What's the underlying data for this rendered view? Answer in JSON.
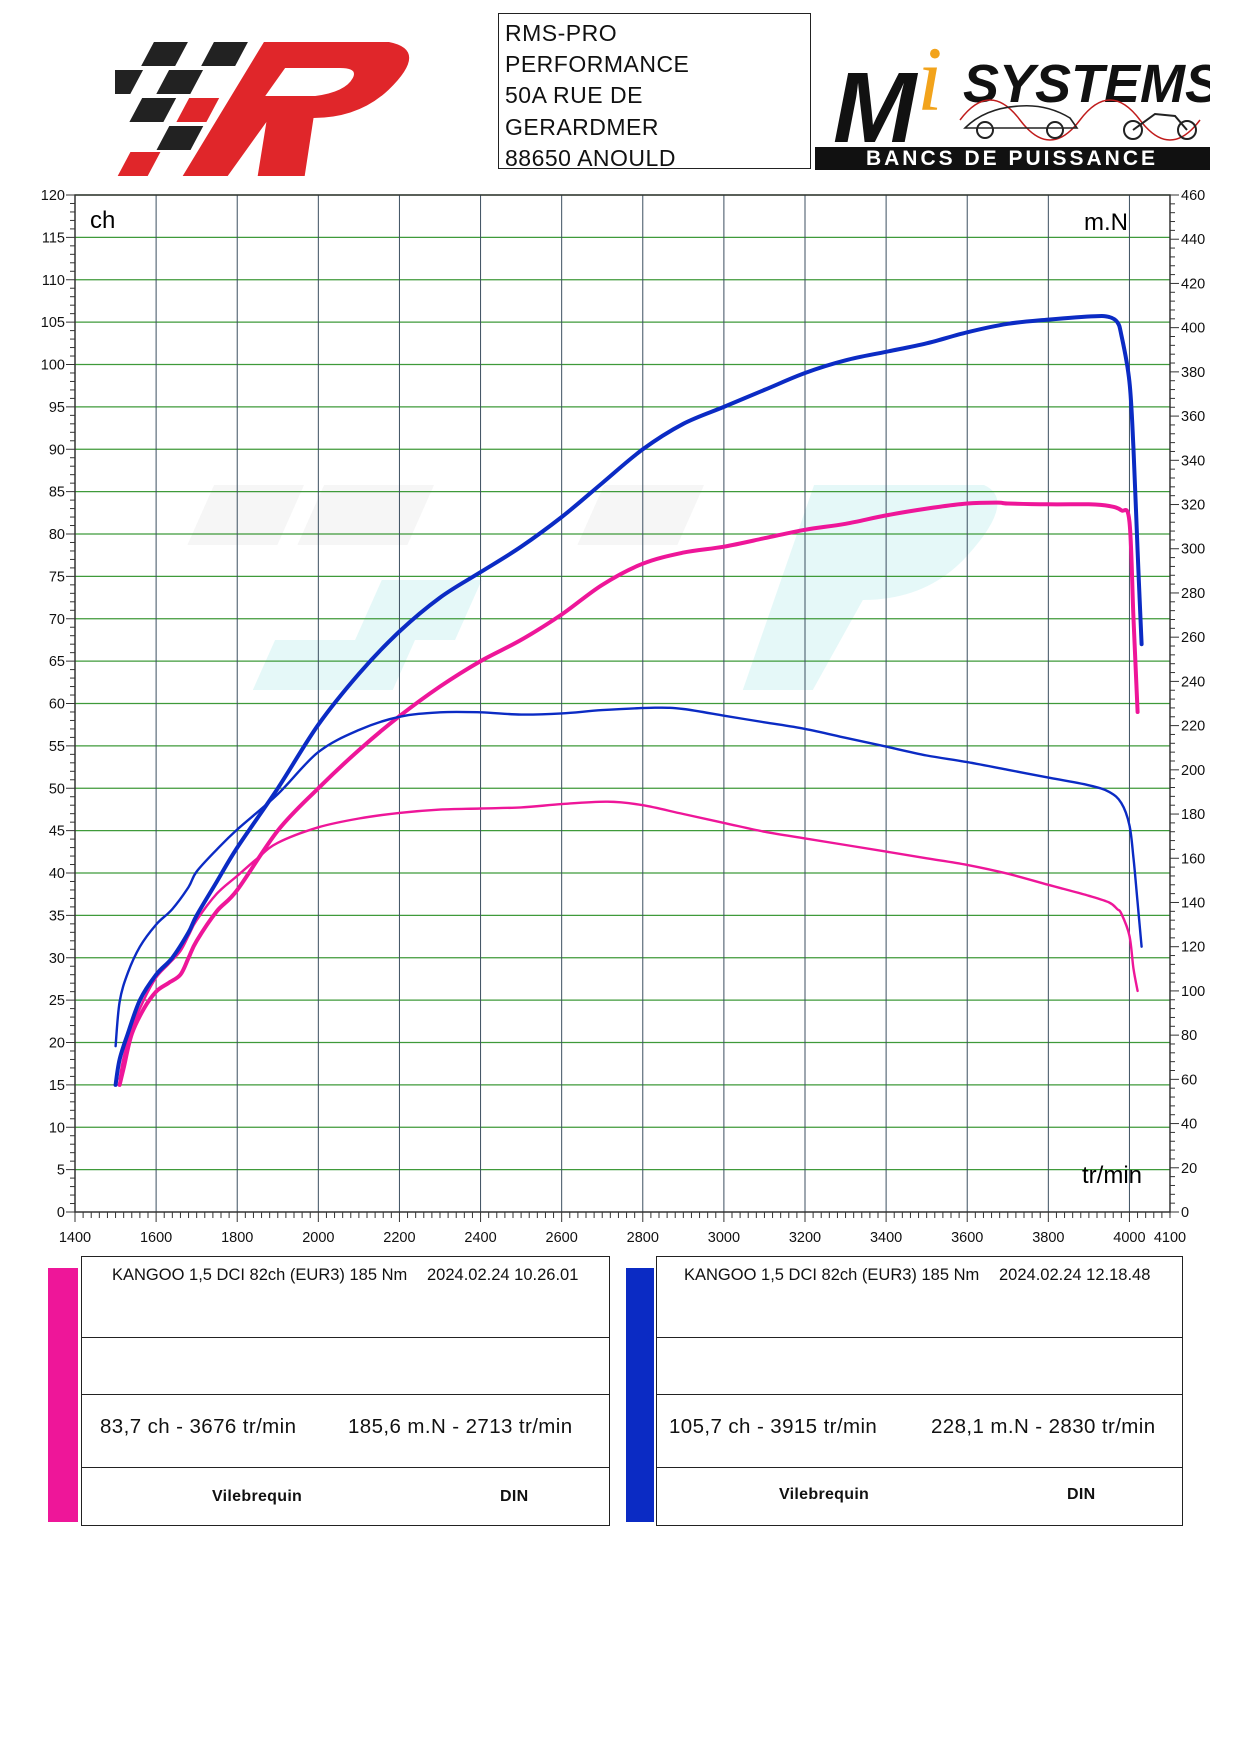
{
  "header": {
    "address_lines": [
      "RMS-PRO",
      "PERFORMANCE",
      "50A RUE DE",
      "GERARDMER",
      "88650 ANOULD"
    ],
    "logo_right_text": "SYSTEMS",
    "logo_right_subtitle": "BANCS DE PUISSANCE",
    "logo_right_letter": "M",
    "logo_right_i": "i"
  },
  "colors": {
    "run1": "#ee1699",
    "run2": "#0b2bc4",
    "grid_v": "#3c4f60",
    "grid_h": "#3f9a3a",
    "logo_red": "#e0262a"
  },
  "chart_data": {
    "type": "line",
    "left_unit": "ch",
    "right_unit": "m.N",
    "x_unit": "tr/min",
    "xlim": [
      1400,
      4100
    ],
    "ylim_left": [
      0,
      120
    ],
    "ylim_right": [
      0,
      460
    ],
    "x_ticks": [
      1400,
      1600,
      1800,
      2000,
      2200,
      2400,
      2600,
      2800,
      3000,
      3200,
      3400,
      3600,
      3800,
      4000,
      4100
    ],
    "y_left_ticks": [
      0,
      5,
      10,
      15,
      20,
      25,
      30,
      35,
      40,
      45,
      50,
      55,
      60,
      65,
      70,
      75,
      80,
      85,
      90,
      95,
      100,
      105,
      110,
      115,
      120
    ],
    "y_right_ticks": [
      0,
      20,
      40,
      60,
      80,
      100,
      120,
      140,
      160,
      180,
      200,
      220,
      240,
      260,
      280,
      300,
      320,
      340,
      360,
      380,
      400,
      420,
      440,
      460
    ],
    "series": [
      {
        "run": "run1",
        "kind": "power",
        "axis": "left",
        "x": [
          1510,
          1520,
          1540,
          1570,
          1600,
          1630,
          1660,
          1680,
          1700,
          1750,
          1800,
          1900,
          2000,
          2100,
          2200,
          2300,
          2400,
          2500,
          2600,
          2700,
          2800,
          2900,
          3000,
          3100,
          3200,
          3300,
          3400,
          3500,
          3600,
          3676,
          3700,
          3800,
          3900,
          3950,
          3980,
          4000,
          4010,
          4020
        ],
        "y": [
          15,
          17,
          21,
          24,
          26,
          27,
          28,
          30,
          32,
          35.5,
          38,
          45,
          50,
          54.5,
          58.5,
          62,
          65,
          67.5,
          70.5,
          74,
          76.5,
          77.8,
          78.5,
          79.5,
          80.5,
          81.2,
          82.2,
          83,
          83.6,
          83.7,
          83.6,
          83.5,
          83.5,
          83.3,
          82.8,
          81.5,
          70,
          59
        ]
      },
      {
        "run": "run1",
        "kind": "torque",
        "axis": "right",
        "x": [
          1510,
          1520,
          1540,
          1570,
          1600,
          1630,
          1660,
          1680,
          1700,
          1750,
          1800,
          1850,
          1900,
          2000,
          2100,
          2200,
          2300,
          2400,
          2500,
          2600,
          2713,
          2800,
          2900,
          3000,
          3100,
          3200,
          3300,
          3400,
          3500,
          3600,
          3700,
          3800,
          3900,
          3950,
          3970,
          3980,
          4000,
          4010,
          4020
        ],
        "y": [
          60,
          70,
          83,
          96,
          106,
          112,
          118,
          125,
          132,
          144,
          152,
          160,
          167,
          174,
          178,
          180.5,
          182,
          182.5,
          183,
          184.5,
          185.6,
          184,
          180,
          176,
          172,
          169,
          166,
          163,
          160,
          157,
          153,
          148,
          143,
          140,
          137,
          135,
          125,
          110,
          100
        ]
      },
      {
        "run": "run2",
        "kind": "power",
        "axis": "left",
        "x": [
          1500,
          1510,
          1530,
          1560,
          1600,
          1640,
          1680,
          1700,
          1750,
          1800,
          1900,
          2000,
          2100,
          2200,
          2300,
          2400,
          2500,
          2600,
          2700,
          2800,
          2900,
          3000,
          3100,
          3200,
          3300,
          3400,
          3500,
          3600,
          3700,
          3800,
          3915,
          3950,
          3970,
          3980,
          4000,
          4010,
          4020,
          4030
        ],
        "y": [
          15,
          18,
          21,
          25,
          28,
          30,
          33,
          35,
          39,
          43,
          50,
          57.5,
          63.5,
          68.5,
          72.5,
          75.5,
          78.5,
          82,
          86,
          90,
          93,
          95,
          97,
          99,
          100.5,
          101.5,
          102.5,
          103.8,
          104.8,
          105.3,
          105.7,
          105.6,
          105,
          103.5,
          98,
          90,
          78,
          67
        ]
      },
      {
        "run": "run2",
        "kind": "torque",
        "axis": "right",
        "x": [
          1500,
          1510,
          1530,
          1560,
          1600,
          1640,
          1680,
          1700,
          1750,
          1800,
          1900,
          2000,
          2100,
          2200,
          2300,
          2400,
          2500,
          2600,
          2700,
          2830,
          2900,
          3000,
          3100,
          3200,
          3300,
          3400,
          3500,
          3600,
          3700,
          3800,
          3900,
          3950,
          3980,
          4000,
          4010,
          4020,
          4030
        ],
        "y": [
          75,
          95,
          108,
          120,
          130,
          137,
          147,
          154,
          164,
          173,
          189,
          208,
          218,
          224,
          226,
          226,
          225,
          225.5,
          227,
          228.1,
          227.5,
          224.5,
          221.5,
          218.5,
          214.5,
          210.5,
          206.5,
          203.5,
          200,
          196.5,
          193,
          190,
          185,
          175,
          160,
          140,
          120
        ]
      }
    ]
  },
  "legend": [
    {
      "run": "run1",
      "title": "KANGOO 1,5 DCI 82ch (EUR3) 185 Nm",
      "date": "2024.02.24 10.26.01",
      "peak_power": "83,7 ch - 3676 tr/min",
      "peak_torque": "185,6 m.N - 2713 tr/min",
      "reference": "Vilebrequin",
      "norm": "DIN"
    },
    {
      "run": "run2",
      "title": "KANGOO 1,5 DCI 82ch (EUR3) 185 Nm",
      "date": "2024.02.24 12.18.48",
      "peak_power": "105,7 ch - 3915 tr/min",
      "peak_torque": "228,1 m.N - 2830 tr/min",
      "reference": "Vilebrequin",
      "norm": "DIN"
    }
  ]
}
